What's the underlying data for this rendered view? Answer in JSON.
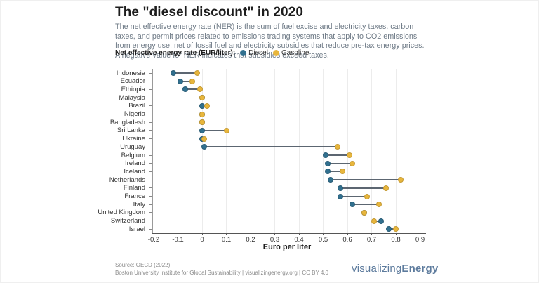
{
  "header": {
    "title": "The \"diesel discount\" in 2020",
    "subtitle": "The net effective energy rate (NER) is the sum of fuel excise and electricity taxes, carbon taxes, and permit prices related to emissions trading systems that apply to CO2 emissions from energy use, net of fossil fuel and electricity subsidies that reduce pre-tax energy prices. A negative value for NER indicates that subsidies exceed taxes."
  },
  "legend": {
    "label": "Net effective energy rate (EUR/liter):"
  },
  "chart_data": {
    "type": "scatter",
    "variant": "dumbbell-dot-plot",
    "title": "The \"diesel discount\" in 2020",
    "xlabel": "Euro per liter",
    "xlim": [
      -0.2,
      0.9
    ],
    "xticks": [
      -0.2,
      -0.1,
      0,
      0.1,
      0.2,
      0.3,
      0.4,
      0.5,
      0.6,
      0.7,
      0.8,
      0.9
    ],
    "xtick_labels": [
      "-0.2",
      "-0.1",
      "0",
      "0.1",
      "0.2",
      "0.3",
      "0.4",
      "0.5",
      "0.6",
      "0.7",
      "0.8",
      "0.9"
    ],
    "grid": "vertical",
    "legend_position": "top",
    "categories": [
      "Indonesia",
      "Ecuador",
      "Ethiopia",
      "Malaysia",
      "Brazil",
      "Nigeria",
      "Bangladesh",
      "Sri Lanka",
      "Ukraine",
      "Uruguay",
      "Belgium",
      "Ireland",
      "Iceland",
      "Netherlands",
      "Finland",
      "France",
      "Italy",
      "United Kingdom",
      "Switzerland",
      "Israel"
    ],
    "series": [
      {
        "name": "Diesel",
        "color": "#31708f",
        "values": [
          -0.12,
          -0.09,
          -0.07,
          0.0,
          0.0,
          0.0,
          0.0,
          0.0,
          0.0,
          0.01,
          0.51,
          0.52,
          0.52,
          0.53,
          0.57,
          0.57,
          0.62,
          0.67,
          0.74,
          0.77
        ]
      },
      {
        "name": "Gasoline",
        "color": "#e8b63c",
        "values": [
          -0.02,
          -0.04,
          -0.01,
          0.0,
          0.02,
          0.0,
          0.0,
          0.1,
          0.01,
          0.56,
          0.61,
          0.62,
          0.58,
          0.82,
          0.76,
          0.68,
          0.73,
          0.67,
          0.71,
          0.8
        ]
      }
    ],
    "connector_color": "#5c6671"
  },
  "footer": {
    "source_line1": "Source: OECD (2022)",
    "source_line2": "Boston University Institute for Global Sustainability | visualizingenergy.org | CC BY 4.0"
  },
  "logo": {
    "light": "visualizing",
    "bold": "Energy"
  }
}
